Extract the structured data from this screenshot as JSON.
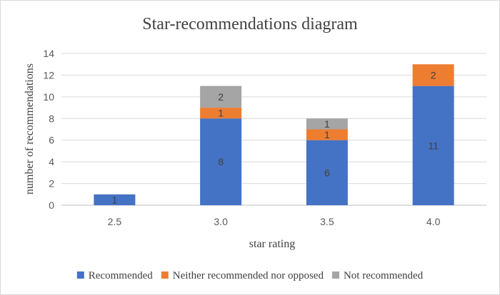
{
  "chart_data": {
    "type": "bar",
    "stacked": true,
    "title": "Star-recommendations diagram",
    "xlabel": "star rating",
    "ylabel": "number of recommendations",
    "categories": [
      "2.5",
      "3.0",
      "3.5",
      "4.0"
    ],
    "ylim": [
      0,
      14
    ],
    "yticks": [
      0,
      2,
      4,
      6,
      8,
      10,
      12,
      14
    ],
    "grid": true,
    "legend_position": "bottom",
    "series": [
      {
        "name": "Recommended",
        "color": "#4472c4",
        "values": [
          1,
          8,
          6,
          11
        ]
      },
      {
        "name": "Neither recommended nor opposed",
        "color": "#ed7d31",
        "values": [
          0,
          1,
          1,
          2
        ]
      },
      {
        "name": "Not recommended",
        "color": "#a5a5a5",
        "values": [
          0,
          2,
          1,
          0
        ]
      }
    ]
  }
}
